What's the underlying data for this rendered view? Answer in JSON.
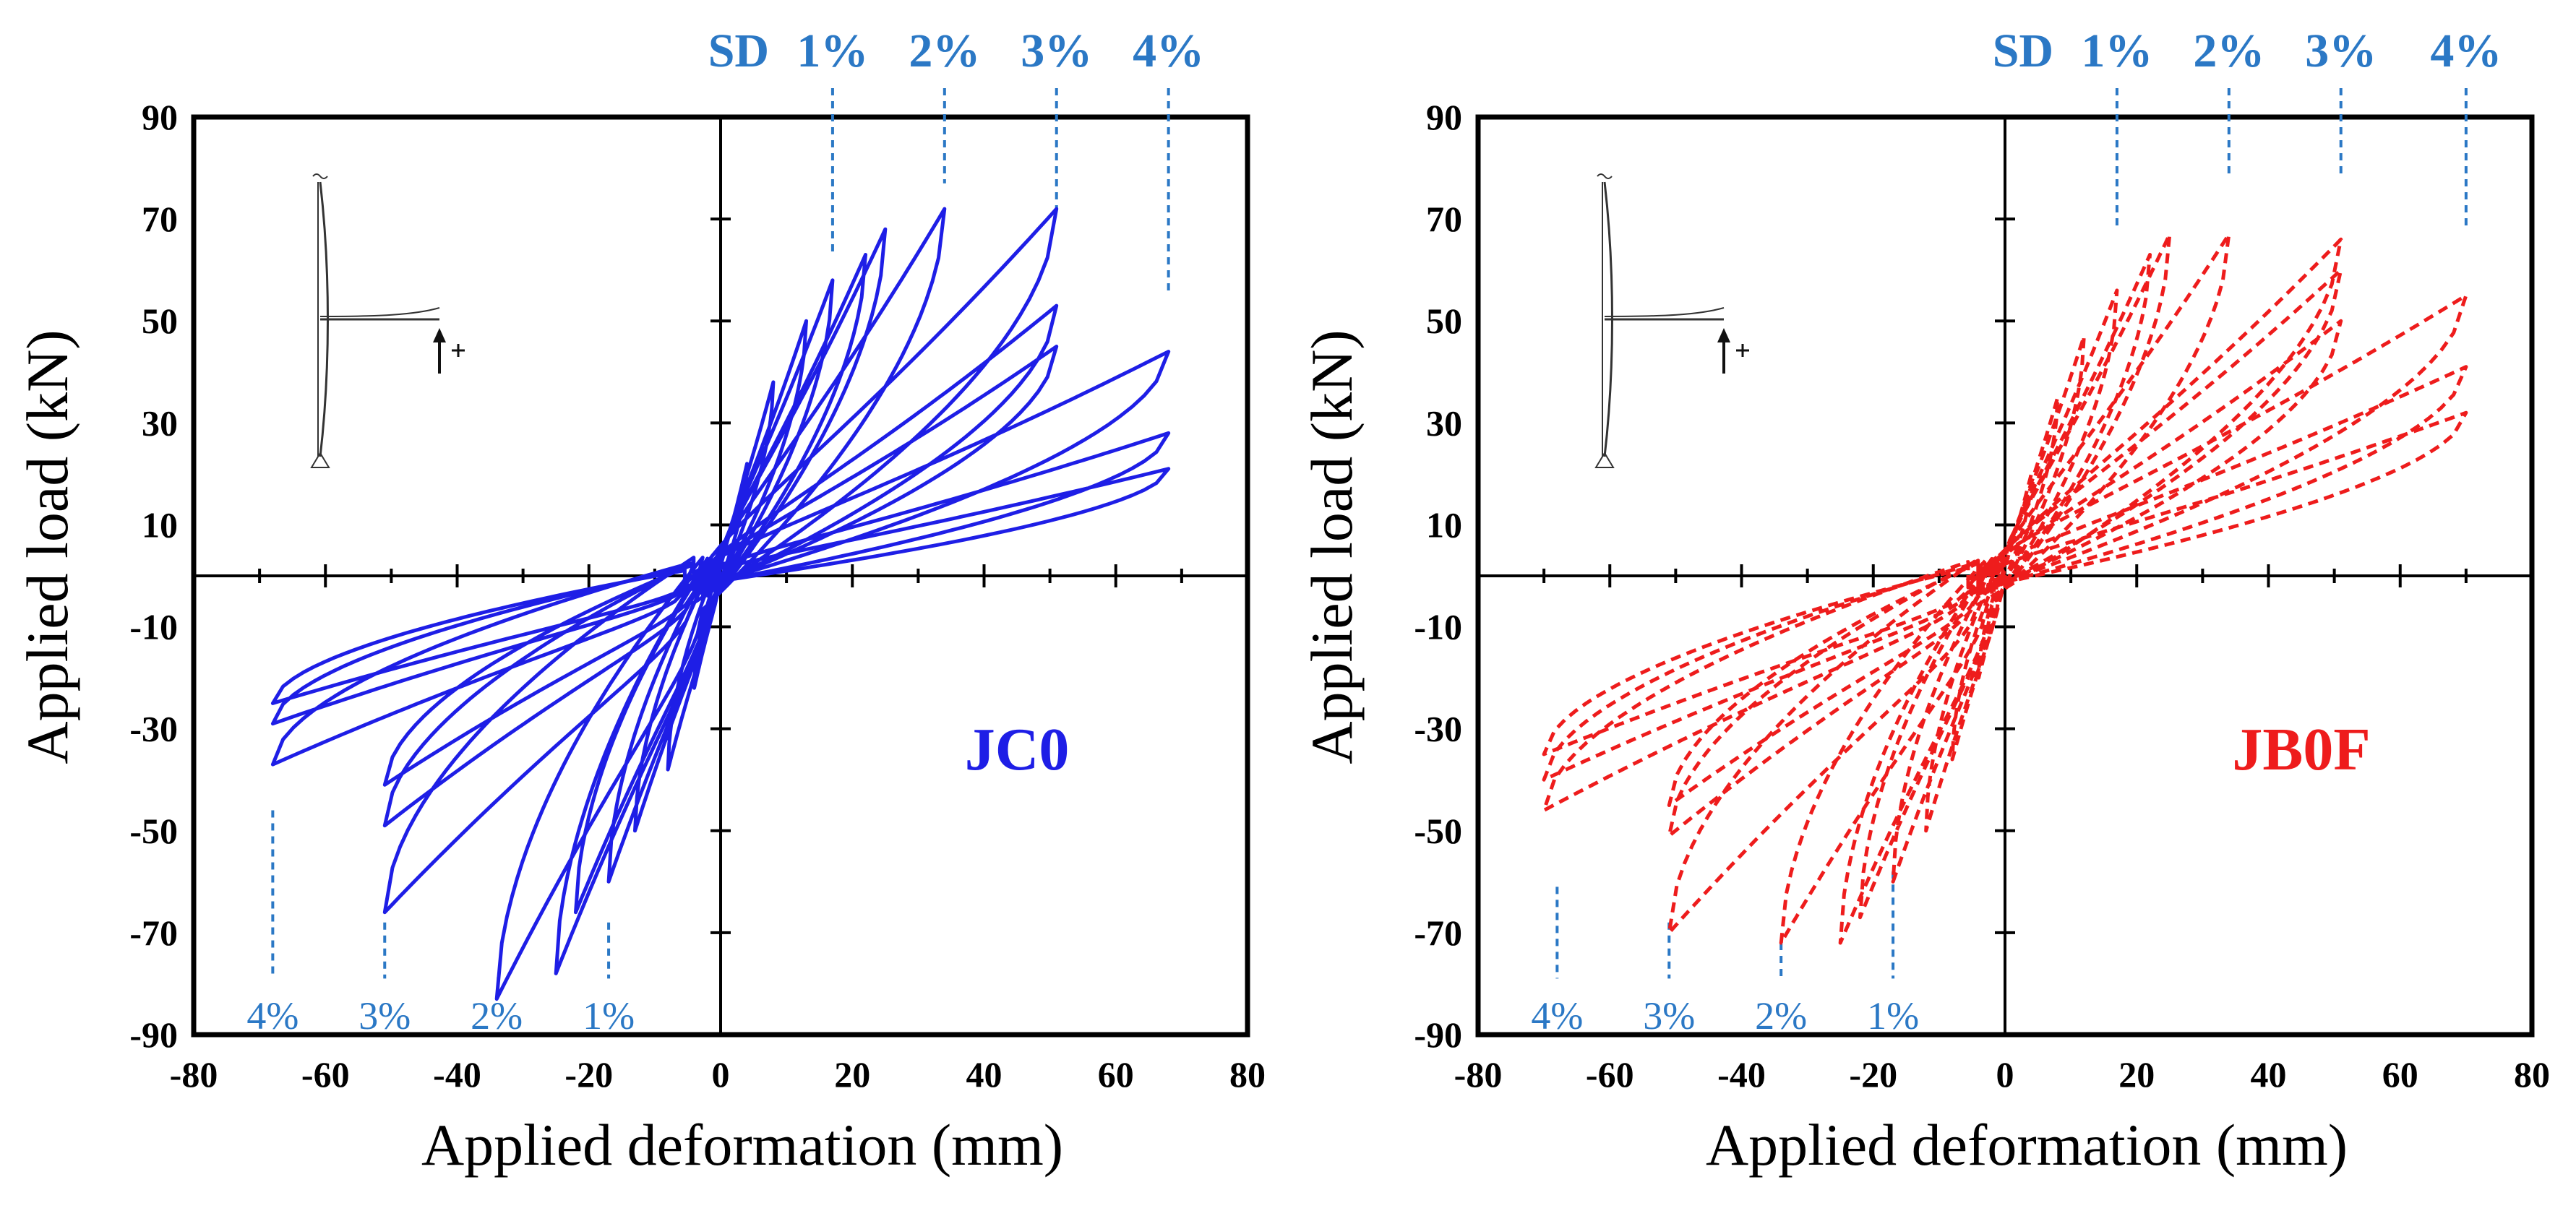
{
  "chart_data": [
    {
      "type": "line",
      "title": "",
      "specimen": "JC0",
      "specimen_color": "#1e1ee6",
      "series_color": "#1e1ee6",
      "line_style": "solid",
      "xlabel": "Applied deformation (mm)",
      "ylabel": "Applied load (kN)",
      "xlim": [
        -80,
        80
      ],
      "ylim": [
        -90,
        90
      ],
      "xticks": [
        -80,
        -60,
        -40,
        -20,
        0,
        20,
        40,
        60,
        80
      ],
      "yticks": [
        90,
        70,
        50,
        30,
        10,
        -10,
        -30,
        -50,
        -70,
        -90
      ],
      "top_markers": [
        {
          "label": "SD",
          "x": null
        },
        {
          "label": "1%",
          "x": 17,
          "line_top": 85,
          "line_bottom": 63
        },
        {
          "label": "2%",
          "x": 34,
          "line_top": 85,
          "line_bottom": 77
        },
        {
          "label": "3%",
          "x": 51,
          "line_top": 85,
          "line_bottom": 72
        },
        {
          "label": "4%",
          "x": 68,
          "line_top": 85,
          "line_bottom": 55
        }
      ],
      "bottom_markers": [
        {
          "label": "4%",
          "x": -68,
          "line_top": -46,
          "line_bottom": -79
        },
        {
          "label": "3%",
          "x": -51,
          "line_top": -68,
          "line_bottom": -79
        },
        {
          "label": "2%",
          "x": -34,
          "line_top": -79,
          "line_bottom": -79
        },
        {
          "label": "1%",
          "x": -17,
          "line_top": -68,
          "line_bottom": -79
        }
      ],
      "peaks": [
        {
          "d": 4,
          "pos": 22,
          "neg": -22
        },
        {
          "d": 8,
          "pos": 38,
          "neg": -38
        },
        {
          "d": 13,
          "pos": 50,
          "neg": -50
        },
        {
          "d": 17,
          "pos": 58,
          "neg": -60
        },
        {
          "d": 22,
          "pos": 63,
          "neg": -66
        },
        {
          "d": 25,
          "pos": 68,
          "neg": -78
        },
        {
          "d": 34,
          "pos": 72,
          "neg": -83
        },
        {
          "d": 51,
          "pos": 72,
          "neg": -66
        },
        {
          "d": 51,
          "pos": 53,
          "neg": -49
        },
        {
          "d": 51,
          "pos": 45,
          "neg": -41
        },
        {
          "d": 68,
          "pos": 44,
          "neg": -37
        },
        {
          "d": 68,
          "pos": 28,
          "neg": -29
        },
        {
          "d": 68,
          "pos": 21,
          "neg": -25
        }
      ]
    },
    {
      "type": "line",
      "title": "",
      "specimen": "JB0F",
      "specimen_color": "#ee1c1c",
      "series_color": "#ee1c1c",
      "line_style": "dashed",
      "xlabel": "Applied deformation (mm)",
      "ylabel": "Applied load (kN)",
      "xlim": [
        -80,
        80
      ],
      "ylim": [
        -90,
        90
      ],
      "xticks": [
        -80,
        -60,
        -40,
        -20,
        0,
        20,
        40,
        60,
        80
      ],
      "yticks": [
        90,
        70,
        50,
        30,
        10,
        -10,
        -30,
        -50,
        -70,
        -90
      ],
      "top_markers": [
        {
          "label": "SD",
          "x": null
        },
        {
          "label": "1%",
          "x": 17,
          "line_top": 85,
          "line_bottom": 68
        },
        {
          "label": "2%",
          "x": 34,
          "line_top": 85,
          "line_bottom": 78
        },
        {
          "label": "3%",
          "x": 51,
          "line_top": 85,
          "line_bottom": 78
        },
        {
          "label": "4%",
          "x": 70,
          "line_top": 85,
          "line_bottom": 68
        }
      ],
      "bottom_markers": [
        {
          "label": "4%",
          "x": -68,
          "line_top": -61,
          "line_bottom": -79
        },
        {
          "label": "3%",
          "x": -51,
          "line_top": -68,
          "line_bottom": -79
        },
        {
          "label": "2%",
          "x": -34,
          "line_top": -72,
          "line_bottom": -79
        },
        {
          "label": "1%",
          "x": -17,
          "line_top": -58,
          "line_bottom": -79
        }
      ],
      "peaks": [
        {
          "d": 4,
          "pos": 20,
          "neg": -20
        },
        {
          "d": 8,
          "pos": 35,
          "neg": -36
        },
        {
          "d": 12,
          "pos": 47,
          "neg": -50
        },
        {
          "d": 17,
          "pos": 56,
          "neg": -60
        },
        {
          "d": 22,
          "pos": 63,
          "neg": -67
        },
        {
          "d": 25,
          "pos": 67,
          "neg": -72
        },
        {
          "d": 34,
          "pos": 67,
          "neg": -72
        },
        {
          "d": 51,
          "pos": 66,
          "neg": -70
        },
        {
          "d": 51,
          "pos": 60,
          "neg": -51
        },
        {
          "d": 51,
          "pos": 50,
          "neg": -45
        },
        {
          "d": 70,
          "pos": 55,
          "neg": -46
        },
        {
          "d": 70,
          "pos": 41,
          "neg": -40
        },
        {
          "d": 70,
          "pos": 32,
          "neg": -35
        }
      ]
    }
  ]
}
